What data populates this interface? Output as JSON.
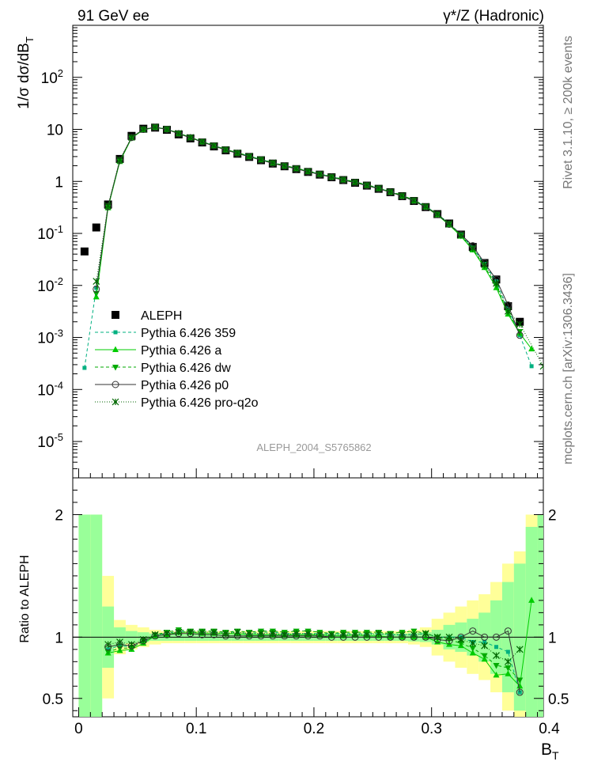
{
  "header": {
    "left": "91 GeV ee",
    "right": "γ*/Z (Hadronic)"
  },
  "side_text": {
    "upper": "Rivet 3.1.10, ≥ 200k events",
    "lower": "mcplots.cern.ch [arXiv:1306.3436]"
  },
  "watermark": "ALEPH_2004_S5765862",
  "colors": {
    "data": "#000000",
    "mc_green": "#00cc00",
    "mc_teal": "#00b080",
    "mc_dark": "#006600",
    "band_inner": "#99ff99",
    "band_outer": "#ffff99"
  },
  "chart_data": [
    {
      "type": "scatter",
      "title": "",
      "ylabel": "1/σ  dσ/dB_T",
      "xlabel": "B_T",
      "yscale": "log",
      "xlim": [
        -0.005,
        0.395
      ],
      "ylim": [
        2e-06,
        1000
      ],
      "y_ticks": [
        "10^-5",
        "10^-4",
        "10^-3",
        "10^-2",
        "10^-1",
        "1",
        "10",
        "10^2"
      ],
      "legend_position": "middle-left",
      "x": [
        0.005,
        0.015,
        0.025,
        0.035,
        0.045,
        0.055,
        0.065,
        0.075,
        0.085,
        0.095,
        0.105,
        0.115,
        0.125,
        0.135,
        0.145,
        0.155,
        0.165,
        0.175,
        0.185,
        0.195,
        0.205,
        0.215,
        0.225,
        0.235,
        0.245,
        0.255,
        0.265,
        0.275,
        0.285,
        0.295,
        0.305,
        0.315,
        0.325,
        0.335,
        0.345,
        0.355,
        0.365,
        0.375,
        0.385,
        0.395
      ],
      "series": [
        {
          "name": "ALEPH",
          "values": [
            0.045,
            0.13,
            0.36,
            2.7,
            7.5,
            10.3,
            10.8,
            9.8,
            8.0,
            6.7,
            5.6,
            4.7,
            3.95,
            3.4,
            2.95,
            2.55,
            2.2,
            1.95,
            1.72,
            1.52,
            1.35,
            1.2,
            1.06,
            0.94,
            0.83,
            0.72,
            0.62,
            0.52,
            0.42,
            0.32,
            0.235,
            0.155,
            0.095,
            0.055,
            0.027,
            0.013,
            0.004,
            0.002,
            null,
            null
          ]
        },
        {
          "name": "Pythia 6.426 359",
          "values": [
            0.00026,
            0.009,
            0.32,
            2.5,
            6.9,
            9.9,
            11.0,
            10.1,
            8.4,
            7.0,
            5.8,
            4.9,
            4.1,
            3.55,
            3.05,
            2.65,
            2.28,
            2.0,
            1.78,
            1.57,
            1.39,
            1.23,
            1.09,
            0.97,
            0.85,
            0.74,
            0.63,
            0.53,
            0.43,
            0.33,
            0.235,
            0.155,
            0.095,
            0.053,
            0.026,
            0.012,
            0.0035,
            0.0011,
            0.00028,
            null
          ]
        },
        {
          "name": "Pythia 6.426 a",
          "values": [
            null,
            0.006,
            0.31,
            2.4,
            6.8,
            9.8,
            10.9,
            10.0,
            8.3,
            6.95,
            5.75,
            4.85,
            4.05,
            3.5,
            3.0,
            2.6,
            2.25,
            1.98,
            1.76,
            1.55,
            1.37,
            1.21,
            1.07,
            0.96,
            0.84,
            0.73,
            0.62,
            0.52,
            0.42,
            0.32,
            0.225,
            0.145,
            0.088,
            0.048,
            0.022,
            0.009,
            0.0028,
            0.0012,
            0.0006,
            null
          ]
        },
        {
          "name": "Pythia 6.426 dw",
          "values": [
            null,
            0.007,
            0.32,
            2.45,
            6.85,
            9.95,
            11.05,
            10.15,
            8.45,
            7.05,
            5.85,
            4.93,
            4.12,
            3.57,
            3.07,
            2.67,
            2.3,
            2.02,
            1.8,
            1.59,
            1.4,
            1.24,
            1.1,
            0.98,
            0.86,
            0.75,
            0.64,
            0.54,
            0.44,
            0.33,
            0.235,
            0.152,
            0.09,
            0.05,
            0.023,
            0.01,
            0.003,
            0.0013,
            null,
            null
          ]
        },
        {
          "name": "Pythia 6.426 p0",
          "values": [
            null,
            0.0085,
            0.33,
            2.55,
            7.0,
            10.0,
            10.9,
            10.0,
            8.25,
            6.9,
            5.7,
            4.8,
            4.0,
            3.45,
            2.97,
            2.57,
            2.22,
            1.96,
            1.74,
            1.53,
            1.36,
            1.2,
            1.06,
            0.94,
            0.83,
            0.72,
            0.62,
            0.52,
            0.42,
            0.32,
            0.23,
            0.15,
            0.095,
            0.058,
            0.027,
            0.013,
            0.0042,
            0.0011,
            null,
            null
          ]
        },
        {
          "name": "Pythia 6.426 pro-q2o",
          "values": [
            null,
            0.012,
            0.34,
            2.6,
            7.05,
            10.05,
            11.05,
            10.1,
            8.35,
            6.98,
            5.8,
            4.88,
            4.08,
            3.52,
            3.03,
            2.63,
            2.27,
            1.99,
            1.77,
            1.56,
            1.38,
            1.22,
            1.08,
            0.96,
            0.85,
            0.74,
            0.63,
            0.53,
            0.43,
            0.33,
            0.235,
            0.155,
            0.093,
            0.052,
            0.025,
            0.011,
            0.0032,
            0.0018,
            null,
            0.00028
          ]
        }
      ]
    },
    {
      "type": "line",
      "title": "",
      "ylabel": "Ratio to ALEPH",
      "xlabel": "B_T",
      "xlim": [
        -0.005,
        0.395
      ],
      "ylim": [
        0.35,
        2.3
      ],
      "x_ticks": [
        "0",
        "0.1",
        "0.2",
        "0.3",
        "0.4"
      ],
      "y_ticks": [
        "0.5",
        "1",
        "2"
      ],
      "x": [
        0.005,
        0.015,
        0.025,
        0.035,
        0.045,
        0.055,
        0.065,
        0.075,
        0.085,
        0.095,
        0.105,
        0.115,
        0.125,
        0.135,
        0.145,
        0.155,
        0.165,
        0.175,
        0.185,
        0.195,
        0.205,
        0.215,
        0.225,
        0.235,
        0.245,
        0.255,
        0.265,
        0.275,
        0.285,
        0.295,
        0.305,
        0.315,
        0.325,
        0.335,
        0.345,
        0.355,
        0.365,
        0.375,
        0.385,
        0.395
      ],
      "band_inner": [
        1.0,
        1.0,
        0.25,
        0.08,
        0.05,
        0.04,
        0.03,
        0.03,
        0.03,
        0.03,
        0.03,
        0.03,
        0.03,
        0.03,
        0.03,
        0.03,
        0.03,
        0.03,
        0.03,
        0.03,
        0.03,
        0.03,
        0.03,
        0.03,
        0.03,
        0.03,
        0.03,
        0.03,
        0.035,
        0.04,
        0.06,
        0.1,
        0.12,
        0.15,
        0.2,
        0.3,
        0.45,
        0.6,
        0.9,
        1.0
      ],
      "band_outer": [
        1.0,
        1.0,
        0.5,
        0.14,
        0.1,
        0.08,
        0.06,
        0.05,
        0.05,
        0.05,
        0.05,
        0.05,
        0.05,
        0.05,
        0.05,
        0.05,
        0.05,
        0.05,
        0.05,
        0.05,
        0.05,
        0.05,
        0.05,
        0.05,
        0.05,
        0.05,
        0.05,
        0.05,
        0.06,
        0.08,
        0.15,
        0.2,
        0.25,
        0.3,
        0.35,
        0.45,
        0.6,
        0.7,
        1.0,
        1.0
      ],
      "series": [
        {
          "name": "Pythia 6.426 359",
          "values": [
            null,
            null,
            0.9,
            0.93,
            0.92,
            0.96,
            1.02,
            1.03,
            1.05,
            1.04,
            1.04,
            1.04,
            1.04,
            1.04,
            1.03,
            1.04,
            1.04,
            1.03,
            1.03,
            1.03,
            1.03,
            1.03,
            1.03,
            1.03,
            1.03,
            1.03,
            1.02,
            1.02,
            1.02,
            1.03,
            1.0,
            1.0,
            1.0,
            0.96,
            0.96,
            0.92,
            0.88,
            0.55,
            null,
            null
          ]
        },
        {
          "name": "Pythia 6.426 a",
          "values": [
            null,
            null,
            0.87,
            0.89,
            0.9,
            0.95,
            1.01,
            1.02,
            1.04,
            1.04,
            1.03,
            1.03,
            1.03,
            1.03,
            1.02,
            1.02,
            1.02,
            1.02,
            1.02,
            1.02,
            1.02,
            1.01,
            1.01,
            1.02,
            1.01,
            1.01,
            1.0,
            1.0,
            1.0,
            1.0,
            0.96,
            0.94,
            0.93,
            0.87,
            0.82,
            0.69,
            0.7,
            0.6,
            1.3,
            null
          ]
        },
        {
          "name": "Pythia 6.426 dw",
          "values": [
            null,
            null,
            0.88,
            0.91,
            0.91,
            0.97,
            1.02,
            1.04,
            1.06,
            1.05,
            1.05,
            1.05,
            1.04,
            1.05,
            1.04,
            1.05,
            1.05,
            1.04,
            1.05,
            1.05,
            1.04,
            1.03,
            1.04,
            1.04,
            1.04,
            1.04,
            1.03,
            1.04,
            1.05,
            1.03,
            1.0,
            0.98,
            0.95,
            0.91,
            0.85,
            0.77,
            0.75,
            0.65,
            null,
            null
          ]
        },
        {
          "name": "Pythia 6.426 p0",
          "values": [
            null,
            null,
            0.92,
            0.94,
            0.93,
            0.97,
            1.01,
            1.02,
            1.03,
            1.03,
            1.02,
            1.02,
            1.01,
            1.01,
            1.01,
            1.01,
            1.01,
            1.01,
            1.01,
            1.01,
            1.01,
            1.0,
            1.0,
            1.0,
            1.0,
            1.0,
            1.0,
            1.0,
            1.0,
            1.0,
            0.98,
            0.97,
            1.0,
            1.05,
            1.0,
            1.0,
            1.05,
            0.55,
            null,
            null
          ]
        },
        {
          "name": "Pythia 6.426 pro-q2o",
          "values": [
            null,
            null,
            0.94,
            0.96,
            0.94,
            0.98,
            1.02,
            1.03,
            1.04,
            1.04,
            1.04,
            1.04,
            1.03,
            1.04,
            1.03,
            1.03,
            1.03,
            1.02,
            1.03,
            1.03,
            1.02,
            1.02,
            1.02,
            1.02,
            1.02,
            1.03,
            1.02,
            1.02,
            1.02,
            1.03,
            1.0,
            1.0,
            0.98,
            0.95,
            0.93,
            0.85,
            0.8,
            0.9,
            null,
            null
          ]
        }
      ]
    }
  ]
}
